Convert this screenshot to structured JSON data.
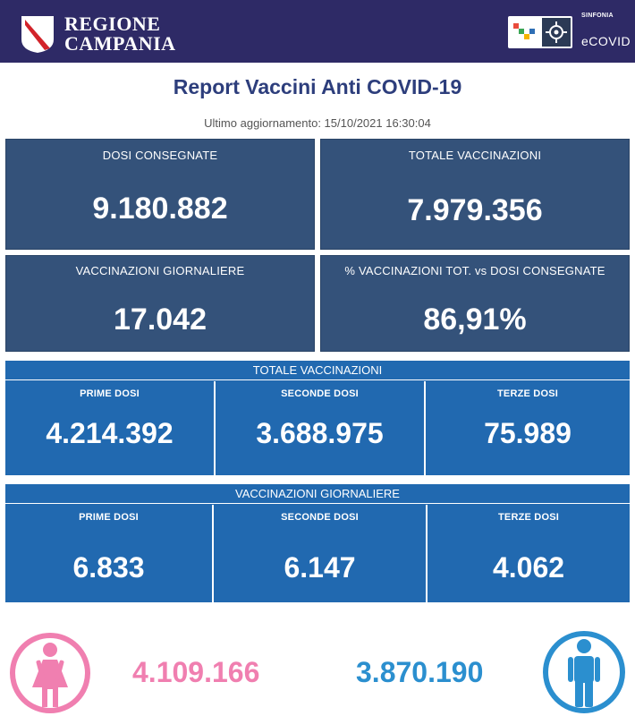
{
  "header": {
    "brand_line1": "REGIONE",
    "brand_line2": "CAMPANIA",
    "partner_label": "SINFONIA",
    "partner_name": "eCOVID",
    "background": "#2e2a66"
  },
  "report": {
    "title": "Report Vaccini Anti COVID-19",
    "updated": "Ultimo aggiornamento: 15/10/2021  16:30:04"
  },
  "cards": {
    "doses_delivered": {
      "label": "DOSI  CONSEGNATE",
      "value": "9.180.882"
    },
    "total_vaccinations": {
      "label": "TOTALE VACCINAZIONI",
      "value": "7.979.356"
    },
    "daily_vaccinations": {
      "label": "VACCINAZIONI GIORNALIERE",
      "value": "17.042"
    },
    "percent_vs_delivered": {
      "label": "% VACCINAZIONI TOT. vs DOSI CONSEGNATE",
      "value": "86,91%"
    }
  },
  "total_section": {
    "title": "TOTALE VACCINAZIONI",
    "first": {
      "label": "PRIME DOSI",
      "value": "4.214.392"
    },
    "second": {
      "label": "SECONDE DOSI",
      "value": "3.688.975"
    },
    "third": {
      "label": "TERZE DOSI",
      "value": "75.989"
    }
  },
  "daily_section": {
    "title": "VACCINAZIONI GIORNALIERE",
    "first": {
      "label": "PRIME DOSI",
      "value": "6.833"
    },
    "second": {
      "label": "SECONDE DOSI",
      "value": "6.147"
    },
    "third": {
      "label": "TERZE DOSI",
      "value": "4.062"
    }
  },
  "gender": {
    "female_value": "4.109.166",
    "male_value": "3.870.190",
    "female_icon": "female-person-icon",
    "male_icon": "male-person-icon",
    "female_color": "#f07fb0",
    "male_color": "#2b8fcf"
  },
  "colors": {
    "card_dark": "#34527a",
    "section_blue": "#2169b0",
    "title_blue": "#2d3e7c"
  }
}
